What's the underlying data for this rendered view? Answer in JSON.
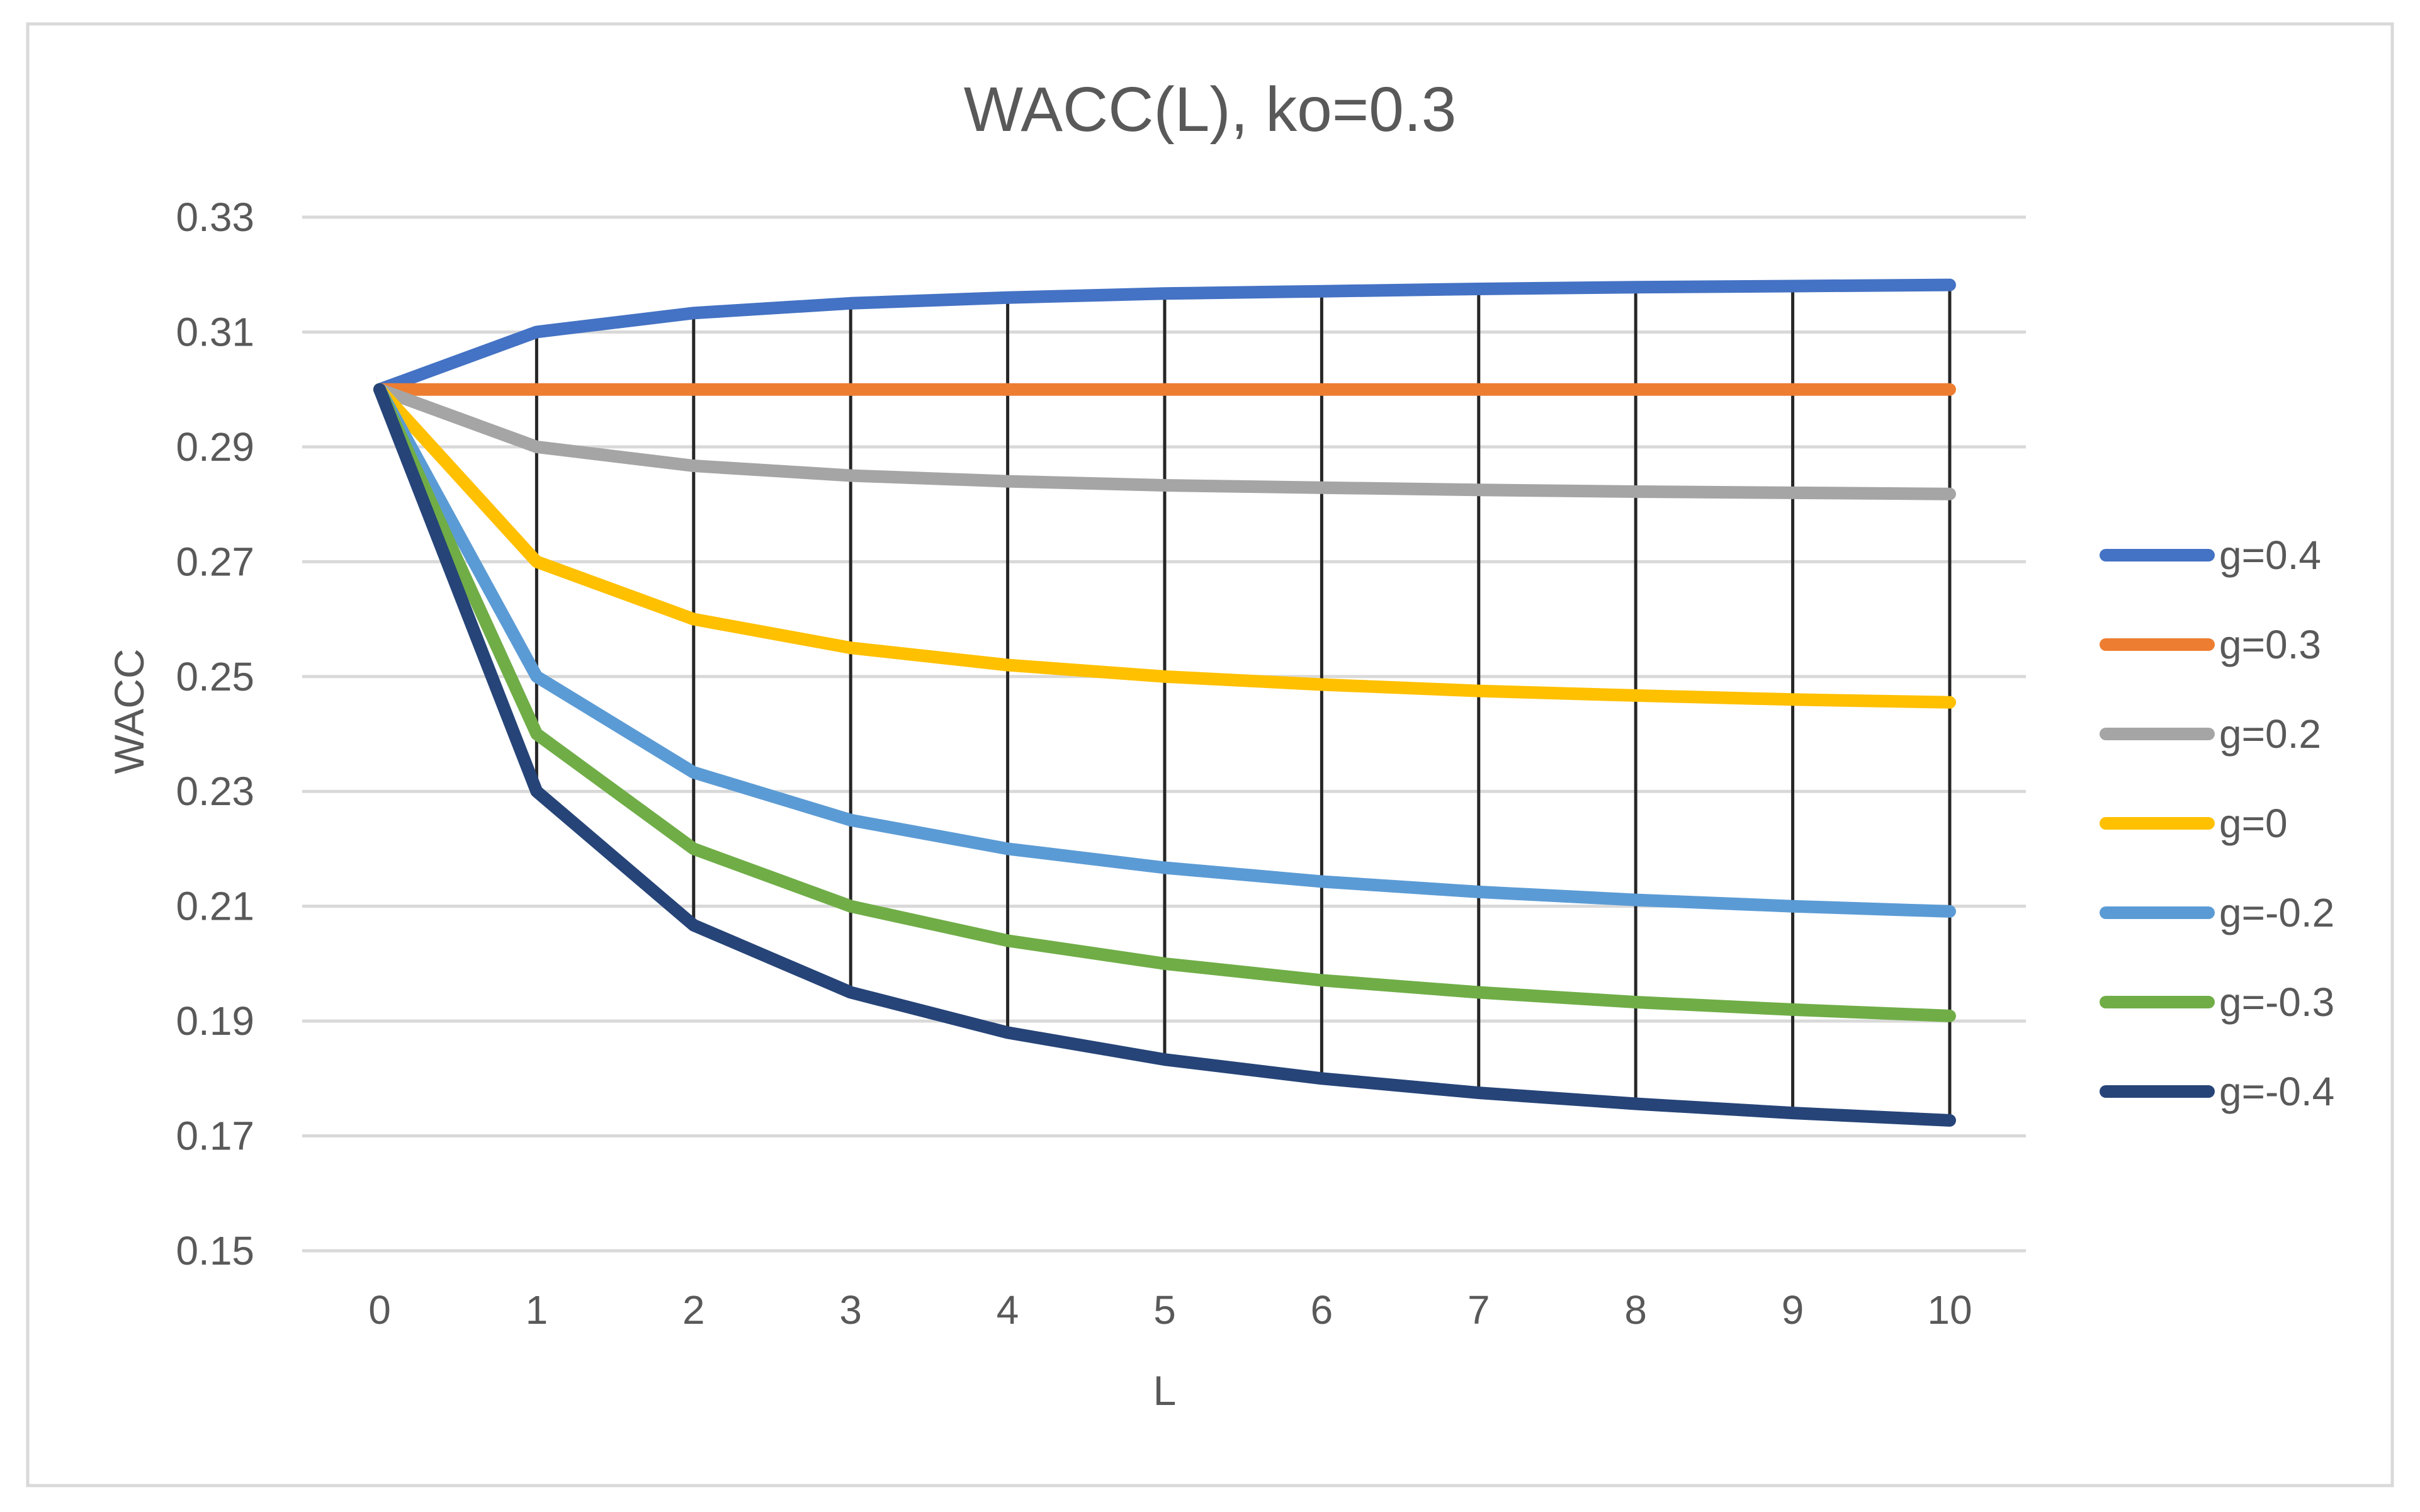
{
  "chart_data": {
    "type": "line",
    "title": "WACC(L), ko=0.3",
    "xlabel": "L",
    "ylabel": "WACC",
    "x": [
      0,
      1,
      2,
      3,
      4,
      5,
      6,
      7,
      8,
      9,
      10
    ],
    "x_tick_labels": [
      "0",
      "1",
      "2",
      "3",
      "4",
      "5",
      "6",
      "7",
      "8",
      "9",
      "10"
    ],
    "ylim": [
      0.15,
      0.33
    ],
    "y_ticks": [
      0.15,
      0.17,
      0.19,
      0.21,
      0.23,
      0.25,
      0.27,
      0.29,
      0.31,
      0.33
    ],
    "y_tick_labels": [
      "0.15",
      "0.17",
      "0.19",
      "0.21",
      "0.23",
      "0.25",
      "0.27",
      "0.29",
      "0.31",
      "0.33"
    ],
    "grid": true,
    "drop_lines": true,
    "legend_position": "right",
    "series": [
      {
        "name": "g=0.4",
        "color": "#4472C4",
        "values": [
          0.3,
          0.31,
          0.3133,
          0.315,
          0.316,
          0.3167,
          0.3171,
          0.3175,
          0.3178,
          0.318,
          0.3182
        ]
      },
      {
        "name": "g=0.3",
        "color": "#ED7D31",
        "values": [
          0.3,
          0.3,
          0.3,
          0.3,
          0.3,
          0.3,
          0.3,
          0.3,
          0.3,
          0.3,
          0.3
        ]
      },
      {
        "name": "g=0.2",
        "color": "#A5A5A5",
        "values": [
          0.3,
          0.29,
          0.2867,
          0.285,
          0.284,
          0.2833,
          0.2829,
          0.2825,
          0.2822,
          0.282,
          0.2818
        ]
      },
      {
        "name": "g=0",
        "color": "#FFC000",
        "values": [
          0.3,
          0.27,
          0.26,
          0.255,
          0.252,
          0.25,
          0.2486,
          0.2475,
          0.2467,
          0.246,
          0.2455
        ]
      },
      {
        "name": "g=-0.2",
        "color": "#5B9BD5",
        "values": [
          0.3,
          0.25,
          0.2333,
          0.225,
          0.22,
          0.2167,
          0.2143,
          0.2125,
          0.2111,
          0.21,
          0.2091
        ]
      },
      {
        "name": "g=-0.3",
        "color": "#70AD47",
        "values": [
          0.3,
          0.24,
          0.22,
          0.21,
          0.204,
          0.2,
          0.1971,
          0.195,
          0.1933,
          0.192,
          0.1909
        ]
      },
      {
        "name": "g=-0.4",
        "color": "#264478",
        "values": [
          0.3,
          0.23,
          0.2067,
          0.195,
          0.188,
          0.1833,
          0.18,
          0.1775,
          0.1756,
          0.174,
          0.1727
        ]
      }
    ]
  }
}
